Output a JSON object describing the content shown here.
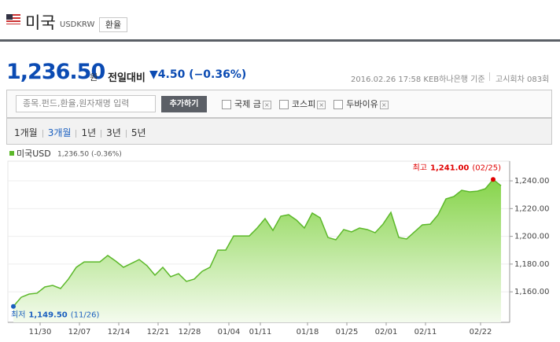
{
  "header": {
    "title": "미국",
    "code": "USDKRW",
    "button": "환율"
  },
  "quote": {
    "price": "1,236.50",
    "unit": "원",
    "change_label": "전일대비",
    "change": "▼4.50 (−0.36%)",
    "meta": "2016.02.26 17:58 KEB하나은행 기준",
    "round": "고시회차 083회"
  },
  "search": {
    "placeholder": "종목.펀드,환율,원자재명 입력",
    "button": "추가하기",
    "options": [
      "국제 금",
      "코스피",
      "두바이유"
    ]
  },
  "tabs": {
    "items": [
      "1개월",
      "3개월",
      "1년",
      "3년",
      "5년"
    ],
    "active": 1
  },
  "chart_data": {
    "type": "area",
    "legend_text": "1,236.50 (-0.36%)",
    "categories": [
      null,
      null,
      null,
      "11/30",
      null,
      null,
      null,
      null,
      "12/07",
      null,
      null,
      null,
      null,
      "12/14",
      null,
      null,
      null,
      null,
      "12/21",
      null,
      null,
      null,
      "12/28",
      null,
      null,
      null,
      null,
      "01/04",
      null,
      null,
      null,
      "01/11",
      null,
      null,
      null,
      null,
      null,
      "01/18",
      null,
      null,
      null,
      null,
      "01/25",
      null,
      null,
      null,
      null,
      "02/01",
      null,
      null,
      null,
      null,
      "02/11",
      null,
      null,
      null,
      null,
      null,
      null,
      "02/22",
      null,
      null,
      null
    ],
    "series": [
      {
        "name": "미국USD",
        "color": "#5cb82a",
        "values": [
          1149.5,
          1156.1,
          1158.4,
          1159.0,
          1163.5,
          1164.6,
          1162.4,
          1169.2,
          1177.7,
          1181.6,
          1181.6,
          1181.6,
          1186.2,
          1182.2,
          1177.7,
          1180.5,
          1183.3,
          1178.8,
          1172.0,
          1177.7,
          1170.9,
          1173.1,
          1167.5,
          1169.2,
          1174.8,
          1177.7,
          1190.1,
          1190.1,
          1200.3,
          1200.3,
          1200.3,
          1206.0,
          1212.8,
          1204.3,
          1214.5,
          1215.6,
          1211.7,
          1206.0,
          1216.8,
          1213.4,
          1199.2,
          1197.5,
          1204.9,
          1203.2,
          1206.0,
          1204.9,
          1202.6,
          1208.8,
          1217.3,
          1199.2,
          1198.1,
          1203.2,
          1208.3,
          1208.8,
          1215.6,
          1227.0,
          1228.7,
          1233.2,
          1232.1,
          1232.6,
          1234.3,
          1241.0,
          1236.5
        ]
      }
    ],
    "high": {
      "label": "최고",
      "value": "1,241.00",
      "date": "(02/25)",
      "color": "#e00000"
    },
    "low": {
      "label": "최저",
      "value": "1,149.50",
      "date": "(11/26)",
      "color": "#1a5fbf"
    },
    "ylim": [
      1138.0,
      1254.2
    ],
    "yticks": [
      {
        "value": 1160,
        "label": "1,160.00"
      },
      {
        "value": 1180,
        "label": "1,180.00"
      },
      {
        "value": 1200,
        "label": "1,200.00"
      },
      {
        "value": 1220,
        "label": "1,220.00"
      },
      {
        "value": 1240,
        "label": "1,240.00"
      }
    ],
    "grid": true
  }
}
